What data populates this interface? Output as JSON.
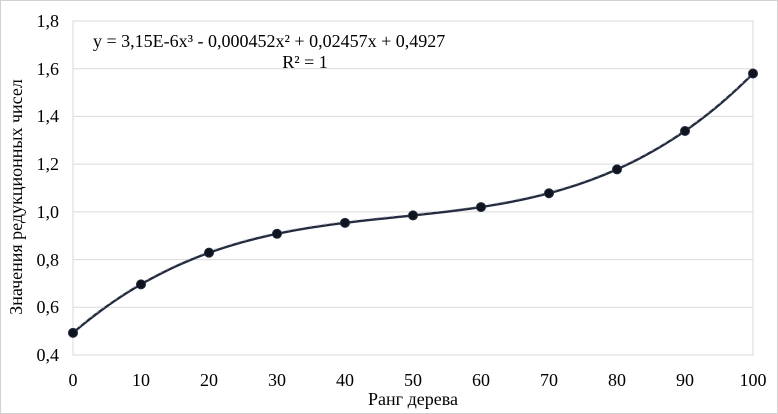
{
  "chart_data": {
    "type": "scatter-line",
    "title": "",
    "xlabel": "Ранг дерева",
    "ylabel": "Значения редукционных чисел",
    "x": [
      0,
      10,
      20,
      30,
      40,
      50,
      60,
      70,
      80,
      90,
      100
    ],
    "values": [
      0.493,
      0.696,
      0.829,
      0.908,
      0.954,
      0.985,
      1.02,
      1.078,
      1.178,
      1.339,
      1.58
    ],
    "xlim": [
      0,
      100
    ],
    "ylim": [
      0.4,
      1.8
    ],
    "x_tick_labels": [
      "0",
      "10",
      "20",
      "30",
      "40",
      "50",
      "60",
      "70",
      "80",
      "90",
      "100"
    ],
    "y_tick_values": [
      0.4,
      0.6,
      0.8,
      1.0,
      1.2,
      1.4,
      1.6,
      1.8
    ],
    "y_tick_labels": [
      "0,4",
      "0,6",
      "0,8",
      "1,0",
      "1,2",
      "1,4",
      "1,6",
      "1,8"
    ],
    "grid": "horizontal",
    "legend": "none",
    "trendline": {
      "coefficients": {
        "x3": 3.15e-06,
        "x2": -0.000452,
        "x1": 0.02457,
        "x0": 0.4927
      },
      "r_squared": 1
    }
  },
  "annotation": {
    "equation": "y = 3,15E-6x³ - 0,000452x² + 0,02457x + 0,4927",
    "r_squared": "R² = 1"
  },
  "colors": {
    "line": "#232b3e",
    "trend_dash": "#b9bfca",
    "marker": "#10141f",
    "grid": "#d9d9d9",
    "text": "#000000",
    "background": "#ffffff"
  }
}
